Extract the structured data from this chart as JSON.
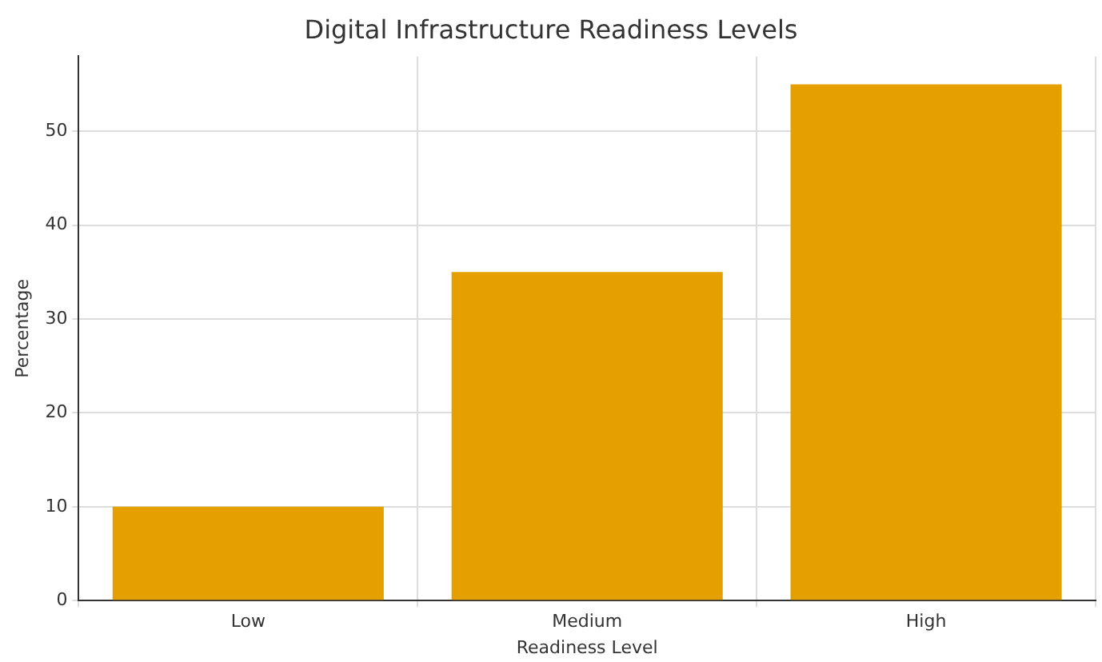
{
  "chart_data": {
    "type": "bar",
    "title": "Digital Infrastructure Readiness Levels",
    "xlabel": "Readiness Level",
    "ylabel": "Percentage",
    "categories": [
      "Low",
      "Medium",
      "High"
    ],
    "values": [
      10,
      35,
      55
    ],
    "color": "#e5a000",
    "ylim": [
      0,
      58
    ],
    "yticks": [
      0,
      10,
      20,
      30,
      40,
      50
    ],
    "grid": true
  }
}
